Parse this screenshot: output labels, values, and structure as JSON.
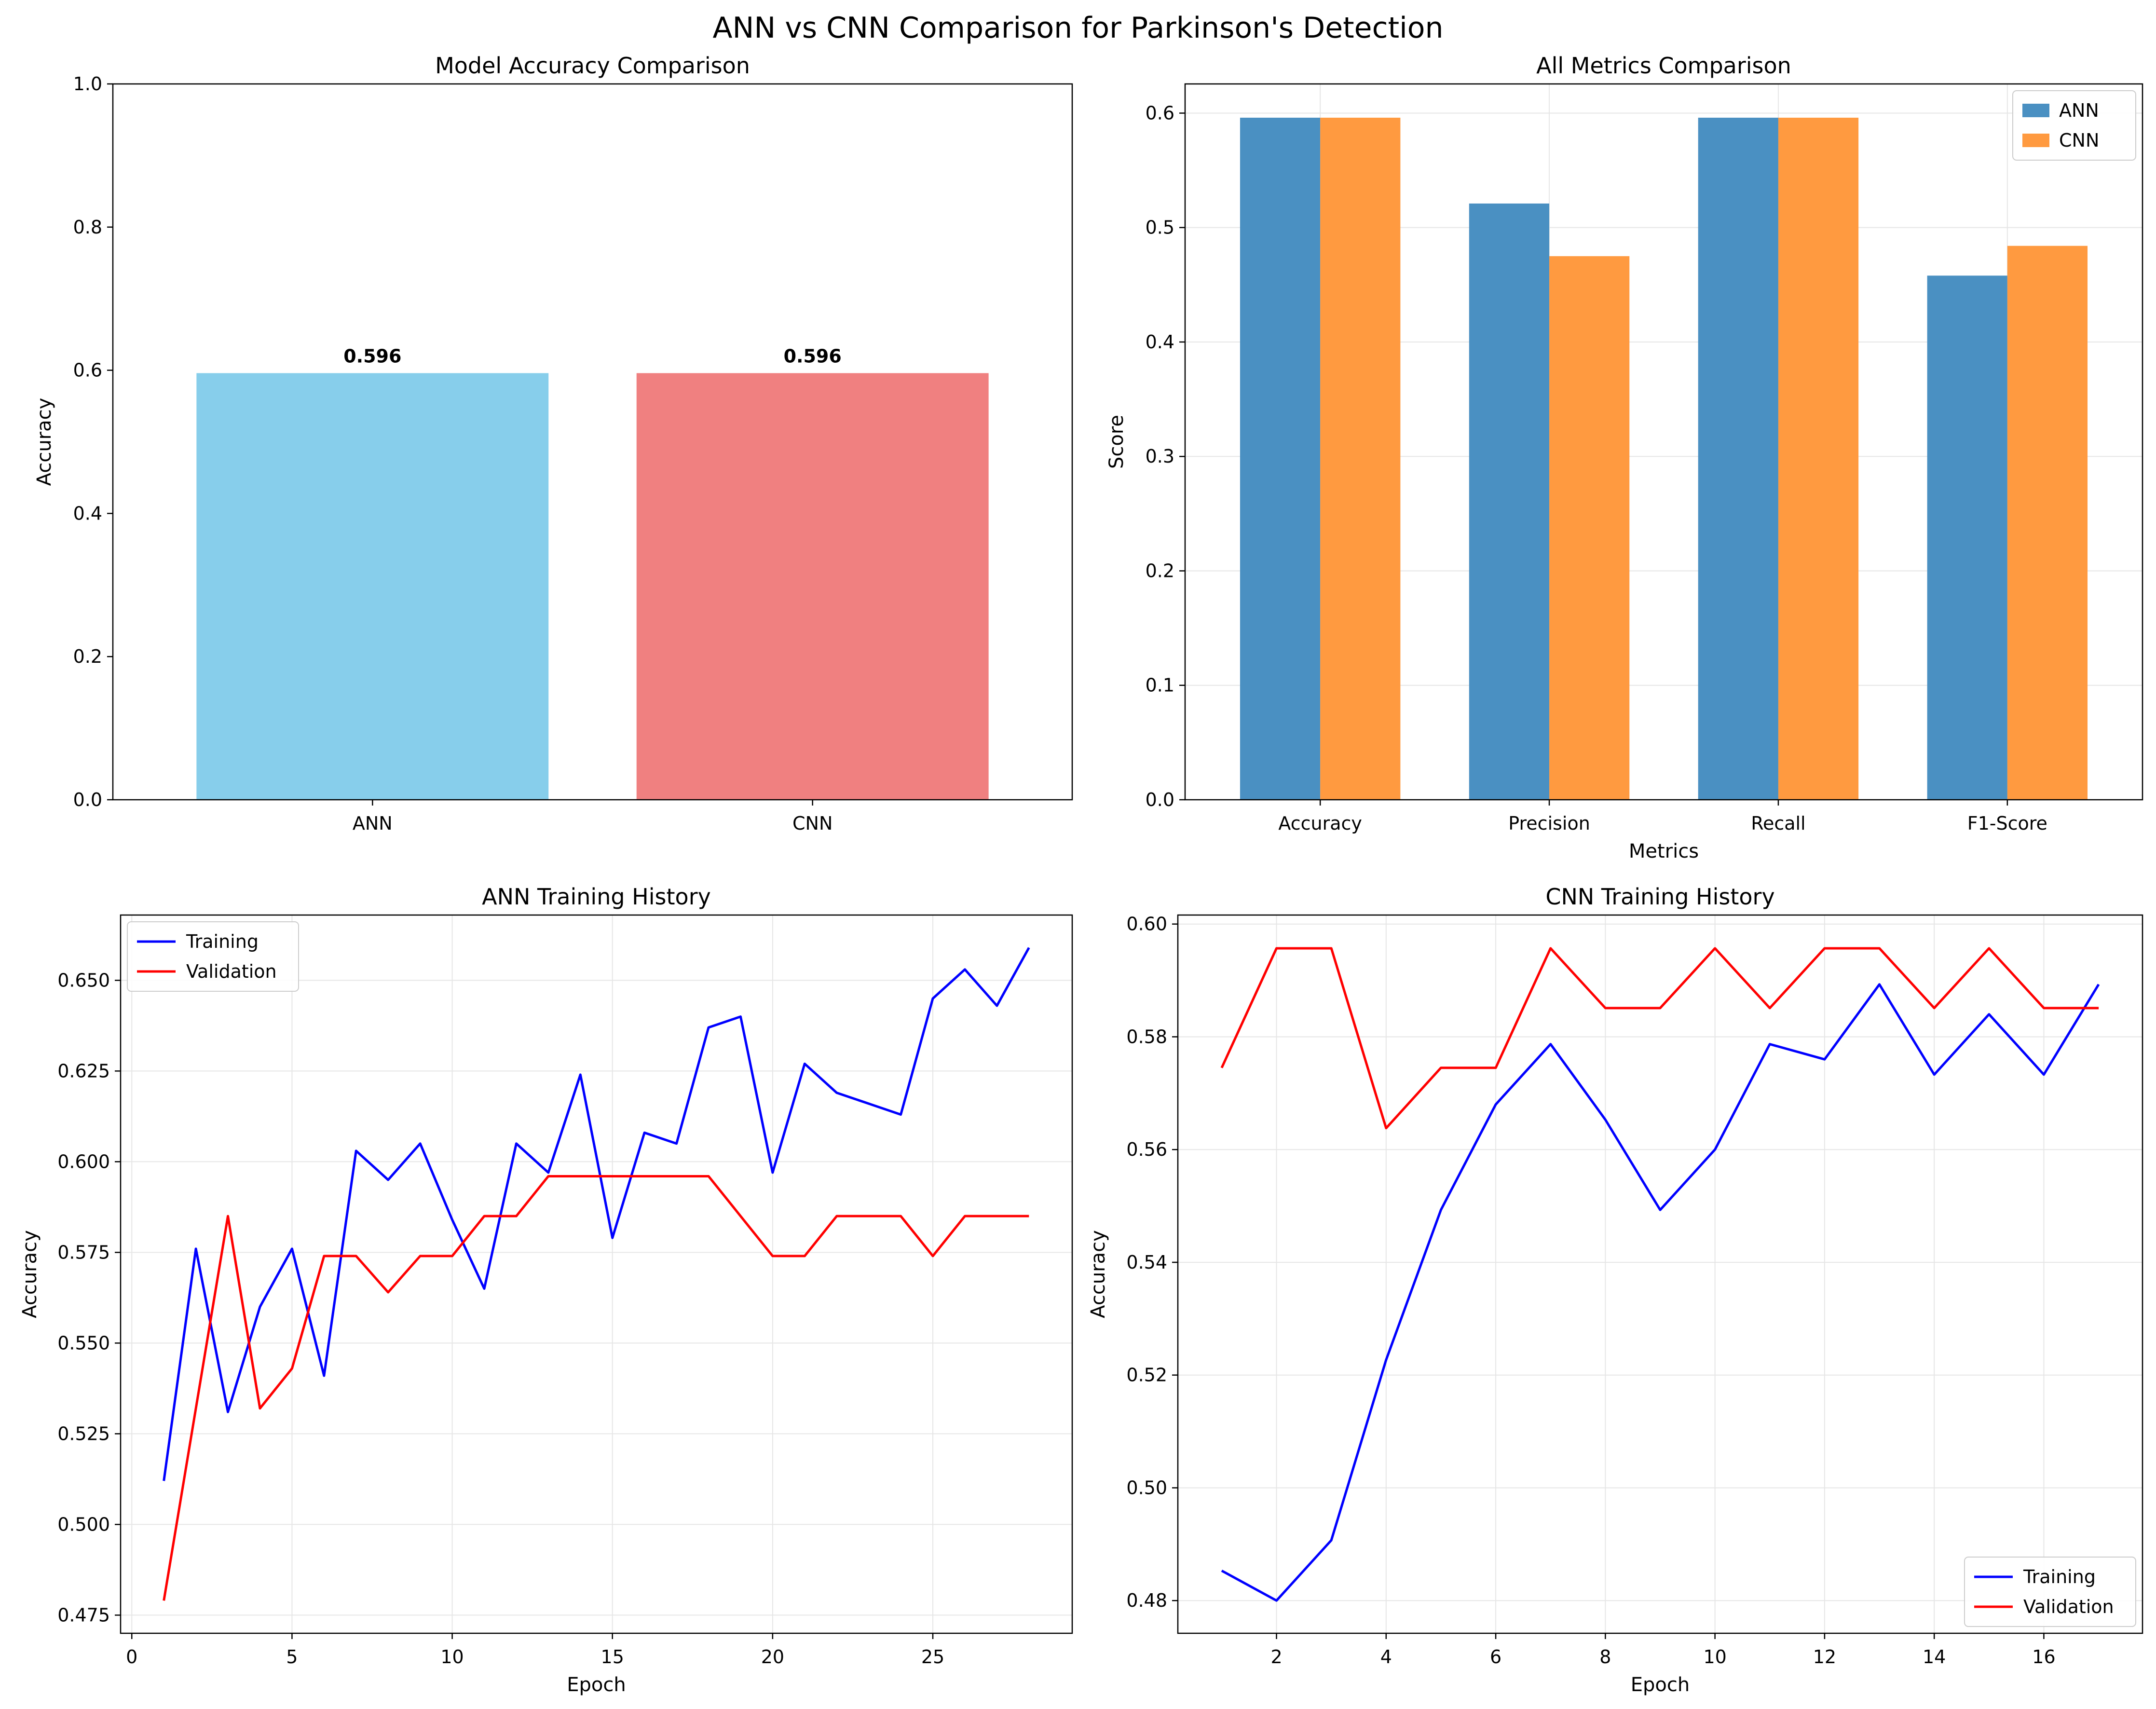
{
  "figure": {
    "title": "ANN vs CNN Comparison for Parkinson's Detection"
  },
  "chart_data": [
    {
      "type": "bar",
      "title": "Model Accuracy Comparison",
      "xlabel": "",
      "ylabel": "Accuracy",
      "categories": [
        "ANN",
        "CNN"
      ],
      "values": [
        0.596,
        0.596
      ],
      "data_labels": [
        "0.596",
        "0.596"
      ],
      "colors": [
        "#87CEEB",
        "#F08080"
      ],
      "ylim": [
        0,
        1.0
      ],
      "yticks": [
        "0.0",
        "0.2",
        "0.4",
        "0.6",
        "0.8",
        "1.0"
      ],
      "grid": false
    },
    {
      "type": "bar",
      "title": "All Metrics Comparison",
      "xlabel": "Metrics",
      "ylabel": "Score",
      "categories": [
        "Accuracy",
        "Precision",
        "Recall",
        "F1-Score"
      ],
      "series": [
        {
          "name": "ANN",
          "color": "#4a90c2",
          "values": [
            0.596,
            0.521,
            0.596,
            0.458
          ]
        },
        {
          "name": "CNN",
          "color": "#ff9a40",
          "values": [
            0.596,
            0.475,
            0.596,
            0.484
          ]
        }
      ],
      "ylim": [
        0,
        0.6255
      ],
      "yticks": [
        "0.0",
        "0.1",
        "0.2",
        "0.3",
        "0.4",
        "0.5",
        "0.6"
      ],
      "legend_position": "top-right",
      "grid": true
    },
    {
      "type": "line",
      "title": "ANN Training History",
      "xlabel": "Epoch",
      "ylabel": "Accuracy",
      "x": [
        1,
        2,
        3,
        4,
        5,
        6,
        7,
        8,
        9,
        10,
        11,
        12,
        13,
        14,
        15,
        16,
        17,
        18,
        19,
        20,
        21,
        22,
        23,
        24,
        25,
        26,
        27,
        28
      ],
      "series": [
        {
          "name": "Training",
          "color": "#0000ff",
          "values": [
            0.512,
            0.576,
            0.531,
            0.56,
            0.576,
            0.541,
            0.603,
            0.595,
            0.605,
            0.584,
            0.565,
            0.605,
            0.597,
            0.624,
            0.579,
            0.608,
            0.605,
            0.637,
            0.64,
            0.597,
            0.627,
            0.619,
            0.616,
            0.613,
            0.645,
            0.653,
            0.643,
            0.659
          ]
        },
        {
          "name": "Validation",
          "color": "#ff0000",
          "values": [
            0.479,
            0.532,
            0.585,
            0.532,
            0.543,
            0.574,
            0.574,
            0.564,
            0.574,
            0.574,
            0.585,
            0.585,
            0.596,
            0.596,
            0.596,
            0.596,
            0.596,
            0.596,
            0.585,
            0.574,
            0.574,
            0.585,
            0.585,
            0.585,
            0.574,
            0.585,
            0.585,
            0.585
          ]
        }
      ],
      "xlim": [
        -0.35,
        29.35
      ],
      "ylim": [
        0.47,
        0.668
      ],
      "xticks": [
        0,
        5,
        10,
        15,
        20,
        25
      ],
      "yticks": [
        "0.475",
        "0.500",
        "0.525",
        "0.550",
        "0.575",
        "0.600",
        "0.625",
        "0.650"
      ],
      "legend_position": "top-left",
      "grid": true
    },
    {
      "type": "line",
      "title": "CNN Training History",
      "xlabel": "Epoch",
      "ylabel": "Accuracy",
      "x": [
        1,
        2,
        3,
        4,
        5,
        6,
        7,
        8,
        9,
        10,
        11,
        12,
        13,
        14,
        15,
        16,
        17
      ],
      "series": [
        {
          "name": "Training",
          "color": "#0000ff",
          "values": [
            0.4853,
            0.48,
            0.4907,
            0.5227,
            0.5493,
            0.568,
            0.5787,
            0.5653,
            0.5493,
            0.56,
            0.5787,
            0.576,
            0.5893,
            0.5733,
            0.584,
            0.5733,
            0.5893
          ]
        },
        {
          "name": "Validation",
          "color": "#ff0000",
          "values": [
            0.5745,
            0.5957,
            0.5957,
            0.5638,
            0.5745,
            0.5745,
            0.5957,
            0.5851,
            0.5851,
            0.5957,
            0.5851,
            0.5957,
            0.5957,
            0.5851,
            0.5957,
            0.5851,
            0.5851
          ]
        }
      ],
      "xlim": [
        0.2,
        17.8
      ],
      "ylim": [
        0.4742,
        0.6016
      ],
      "xticks": [
        2,
        4,
        6,
        8,
        10,
        12,
        14,
        16
      ],
      "yticks": [
        "0.48",
        "0.50",
        "0.52",
        "0.54",
        "0.56",
        "0.58",
        "0.60"
      ],
      "legend_position": "bottom-right",
      "grid": true
    }
  ]
}
